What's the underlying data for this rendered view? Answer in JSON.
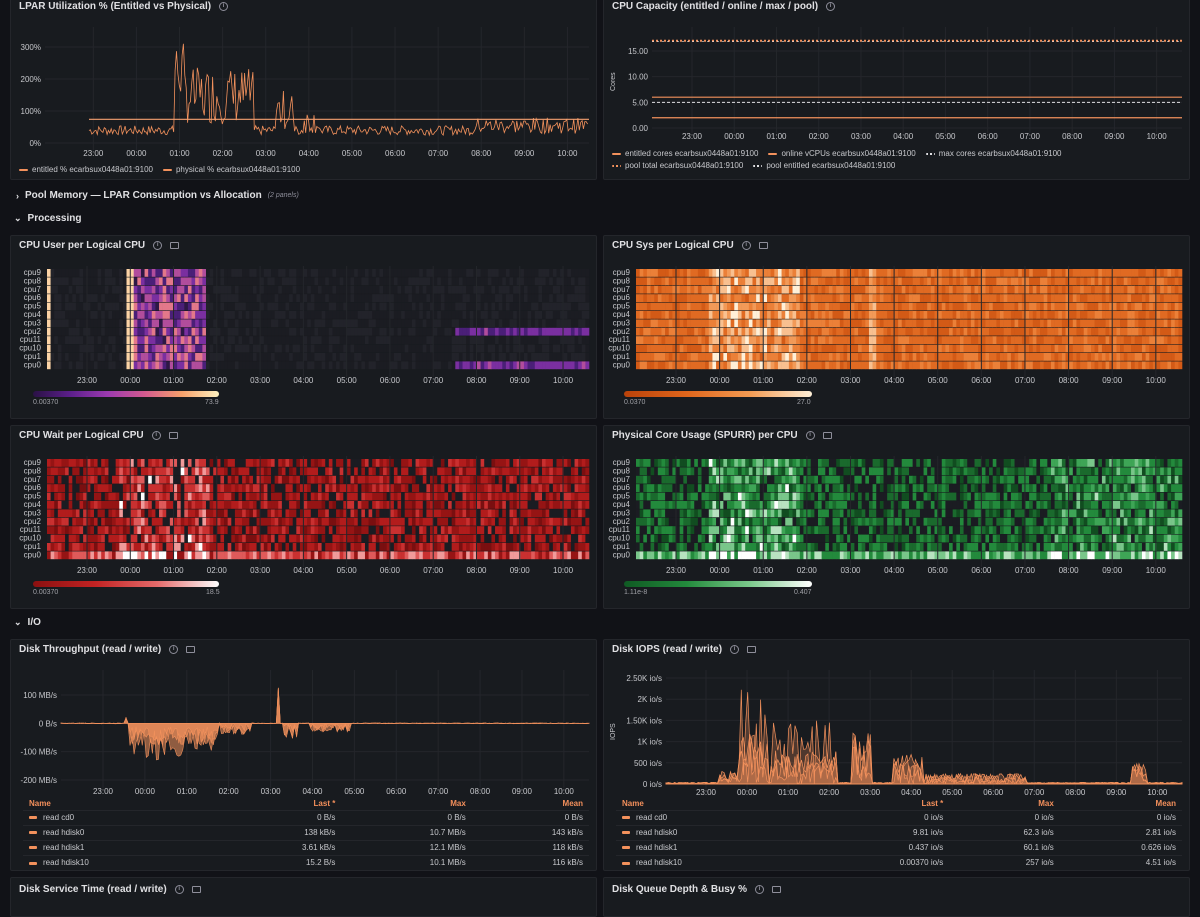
{
  "panels": {
    "lpar": {
      "title": "LPAR Utilization % (Entitled vs Physical)",
      "yticks": [
        "300%",
        "200%",
        "100%",
        "0%"
      ],
      "legend": [
        "entitled % ecarbsux0448a01:9100",
        "physical % ecarbsux0448a01:9100"
      ]
    },
    "capacity": {
      "title": "CPU Capacity (entitled / online / max / pool)",
      "ylabel": "Cores",
      "yticks": [
        "15.00",
        "10.00",
        "5.00",
        "0.00"
      ],
      "legend": [
        "entitled cores ecarbsux0448a01:9100",
        "online vCPUs ecarbsux0448a01:9100",
        "max cores ecarbsux0448a01:9100",
        "pool total ecarbsux0448a01:9100",
        "pool entitled ecarbsux0448a01:9100"
      ]
    },
    "cpu_user": {
      "title": "CPU User per Logical CPU",
      "min": "0.00370",
      "max": "73.9"
    },
    "cpu_sys": {
      "title": "CPU Sys per Logical CPU",
      "min": "0.0370",
      "max": "27.0"
    },
    "cpu_wait": {
      "title": "CPU Wait per Logical CPU",
      "min": "0.00370",
      "max": "18.5"
    },
    "core_usage": {
      "title": "Physical Core Usage (SPURR) per CPU",
      "min": "1.11e-8",
      "max": "0.407"
    },
    "disk_tp": {
      "title": "Disk Throughput (read / write)",
      "yticks": [
        "100 MB/s",
        "0 B/s",
        "-100 MB/s",
        "-200 MB/s"
      ],
      "headers": [
        "Name",
        "Last *",
        "Max",
        "Mean"
      ],
      "rows": [
        [
          "read cd0",
          "0 B/s",
          "0 B/s",
          "0 B/s"
        ],
        [
          "read hdisk0",
          "138 kB/s",
          "10.7 MB/s",
          "143 kB/s"
        ],
        [
          "read hdisk1",
          "3.61 kB/s",
          "12.1 MB/s",
          "118 kB/s"
        ],
        [
          "read hdisk10",
          "15.2 B/s",
          "10.1 MB/s",
          "116 kB/s"
        ]
      ]
    },
    "disk_iops": {
      "title": "Disk IOPS (read / write)",
      "ylabel": "IOPS",
      "yticks": [
        "2.50K io/s",
        "2K io/s",
        "1.50K io/s",
        "1K io/s",
        "500 io/s",
        "0 io/s"
      ],
      "headers": [
        "Name",
        "Last *",
        "Max",
        "Mean"
      ],
      "rows": [
        [
          "read cd0",
          "0 io/s",
          "0 io/s",
          "0 io/s"
        ],
        [
          "read hdisk0",
          "9.81 io/s",
          "62.3 io/s",
          "2.81 io/s"
        ],
        [
          "read hdisk1",
          "0.437 io/s",
          "60.1 io/s",
          "0.626 io/s"
        ],
        [
          "read hdisk10",
          "0.00370 io/s",
          "257 io/s",
          "4.51 io/s"
        ]
      ]
    },
    "svc_time": {
      "title": "Disk Service Time (read / write)"
    },
    "queue": {
      "title": "Disk Queue Depth & Busy %"
    }
  },
  "rows": {
    "pool_memory": {
      "title": "Pool Memory — LPAR Consumption vs Allocation",
      "sub": "(2 panels)"
    },
    "processing": {
      "title": "Processing"
    },
    "io": {
      "title": "I/O"
    }
  },
  "cpus": [
    "cpu9",
    "cpu8",
    "cpu7",
    "cpu6",
    "cpu5",
    "cpu4",
    "cpu3",
    "cpu2",
    "cpu11",
    "cpu10",
    "cpu1",
    "cpu0"
  ],
  "xticks": [
    "23:00",
    "00:00",
    "01:00",
    "02:00",
    "03:00",
    "04:00",
    "05:00",
    "06:00",
    "07:00",
    "08:00",
    "09:00",
    "10:00"
  ],
  "colors": {
    "accent": "#f2915c",
    "bg": "#111217",
    "panel": "#181b1f"
  },
  "chart_data": [
    {
      "type": "line",
      "title": "LPAR Utilization % (Entitled vs Physical)",
      "x": [
        "23:00",
        "00:00",
        "01:00",
        "02:00",
        "03:00",
        "04:00",
        "05:00",
        "06:00",
        "07:00",
        "08:00",
        "09:00",
        "10:00"
      ],
      "series": [
        {
          "name": "entitled % ecarbsux0448a01:9100",
          "values": [
            75,
            75,
            75,
            75,
            75,
            75,
            75,
            75,
            75,
            75,
            75,
            75
          ]
        },
        {
          "name": "physical % ecarbsux0448a01:9100",
          "values": [
            30,
            220,
            150,
            60,
            40,
            35,
            30,
            35,
            60,
            45,
            40,
            40
          ]
        }
      ],
      "ylim": [
        0,
        320
      ]
    },
    {
      "type": "line",
      "title": "CPU Capacity (entitled / online / max / pool)",
      "ylabel": "Cores",
      "ylim": [
        0,
        18
      ],
      "series": [
        {
          "name": "entitled cores ecarbsux0448a01:9100",
          "values": [
            2
          ]
        },
        {
          "name": "online vCPUs ecarbsux0448a01:9100",
          "values": [
            6
          ]
        },
        {
          "name": "max cores ecarbsux0448a01:9100",
          "values": [
            5
          ]
        },
        {
          "name": "pool total ecarbsux0448a01:9100",
          "values": [
            17
          ]
        },
        {
          "name": "pool entitled ecarbsux0448a01:9100",
          "values": [
            17
          ]
        }
      ]
    },
    {
      "type": "area",
      "title": "Disk Throughput (read / write)",
      "x": [
        "23:00",
        "00:00",
        "01:00",
        "02:00",
        "03:00",
        "04:00",
        "05:00",
        "06:00",
        "07:00",
        "08:00",
        "09:00",
        "10:00"
      ],
      "values": [
        0,
        -120,
        -60,
        130,
        -20,
        -5,
        -3,
        0,
        0,
        0,
        0,
        0
      ],
      "ylim": [
        -200,
        100
      ]
    },
    {
      "type": "line",
      "title": "Disk IOPS (read / write)",
      "ylabel": "IOPS",
      "x": [
        "23:00",
        "00:00",
        "01:00",
        "02:00",
        "03:00",
        "04:00",
        "05:00",
        "06:00",
        "07:00",
        "08:00",
        "09:00",
        "10:00"
      ],
      "values": [
        100,
        2300,
        1600,
        1200,
        800,
        200,
        100,
        50,
        150,
        100,
        50,
        30
      ],
      "ylim": [
        0,
        2500
      ]
    }
  ]
}
